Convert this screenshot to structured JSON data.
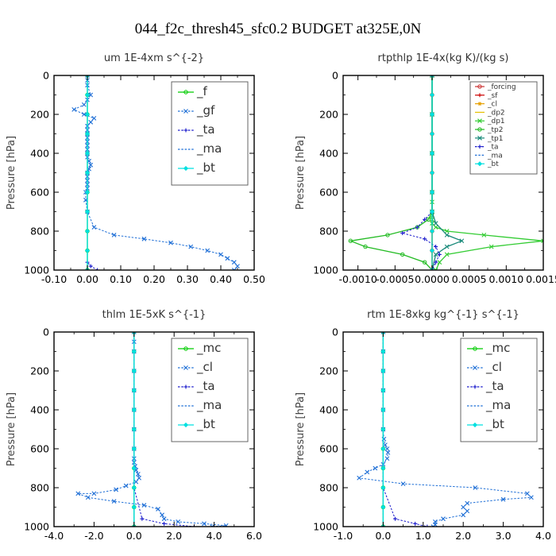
{
  "suptitle": "044_f2c_thresh45_sfc0.2  BUDGET at325E,0N",
  "chart_data": [
    {
      "type": "line",
      "title": "um   1E-4xm s^{-2}",
      "ylabel": "Pressure [hPa]",
      "xlim": [
        -0.1,
        0.5
      ],
      "ylim": [
        1000,
        0
      ],
      "xticks": [
        "-0.10",
        "0.00",
        "0.10",
        "0.20",
        "0.30",
        "0.40",
        "0.50"
      ],
      "xtick_values": [
        -0.1,
        0.0,
        0.1,
        0.2,
        0.3,
        0.4,
        0.5
      ],
      "yticks": [
        "0",
        "200",
        "400",
        "600",
        "800",
        "1000"
      ],
      "ytick_values": [
        0,
        200,
        400,
        600,
        800,
        1000
      ],
      "legend_position": "top-right",
      "legend_size": "large",
      "series": [
        {
          "name": "_f",
          "color": "#00cc00",
          "marker": "circle",
          "dashed": false,
          "x": [
            0,
            0,
            0,
            0,
            0,
            0,
            0,
            0,
            0,
            0,
            0
          ],
          "y": [
            0,
            100,
            200,
            300,
            400,
            500,
            600,
            700,
            800,
            900,
            1000
          ]
        },
        {
          "name": "_gf",
          "color": "#1f6fd6",
          "marker": "cross",
          "dashed": true,
          "x": [
            0.0,
            0.0,
            0.0,
            0.01,
            0.0,
            -0.01,
            -0.04,
            -0.01,
            0.02,
            0.01,
            0.0,
            0.0,
            0.0,
            0.0,
            0.0,
            0.0,
            0.0,
            0.0,
            0.0,
            0.005,
            0.01,
            0.005,
            0.0,
            0.0,
            0.0,
            0.0,
            0.0,
            -0.005,
            -0.005,
            0.0,
            0.02,
            0.08,
            0.17,
            0.25,
            0.31,
            0.36,
            0.4,
            0.42,
            0.44,
            0.45,
            0.44
          ],
          "y": [
            0,
            25,
            50,
            100,
            125,
            150,
            175,
            200,
            220,
            240,
            260,
            280,
            300,
            320,
            340,
            360,
            380,
            400,
            420,
            440,
            460,
            480,
            500,
            520,
            540,
            560,
            580,
            600,
            640,
            700,
            780,
            820,
            840,
            860,
            880,
            900,
            920,
            940,
            960,
            980,
            1000
          ]
        },
        {
          "name": "_ta",
          "color": "#1a1acc",
          "marker": "plus",
          "dashed": true,
          "x": [
            0,
            0,
            0,
            0,
            0,
            0,
            0,
            0,
            0,
            0,
            0,
            0.01,
            0.03
          ],
          "y": [
            0,
            100,
            200,
            300,
            400,
            500,
            600,
            700,
            800,
            900,
            960,
            980,
            1000
          ]
        },
        {
          "name": "_ma",
          "color": "#1f6fd6",
          "marker": "none",
          "dashed": true,
          "x": [
            0,
            0,
            0,
            0,
            0,
            0,
            0,
            0,
            0,
            0,
            0
          ],
          "y": [
            0,
            100,
            200,
            300,
            400,
            500,
            600,
            700,
            800,
            900,
            1000
          ]
        },
        {
          "name": "_bt",
          "color": "#00e0e0",
          "marker": "diamond",
          "dashed": false,
          "x": [
            0,
            0,
            0,
            0,
            0,
            0,
            0,
            0,
            0,
            0,
            0
          ],
          "y": [
            0,
            100,
            200,
            300,
            400,
            500,
            600,
            700,
            800,
            900,
            1000
          ]
        }
      ]
    },
    {
      "type": "line",
      "title": "rtpthlp   1E-4x(kg K)/(kg s)",
      "ylabel": "Pressure [hPa]",
      "xlim": [
        -0.0012,
        0.0015
      ],
      "ylim": [
        1000,
        0
      ],
      "xticks": [
        "-0.0010",
        "-0.0005",
        "0.0000",
        "0.0005",
        "0.0010",
        "0.0015"
      ],
      "xtick_values": [
        -0.001,
        -0.0005,
        0.0,
        0.0005,
        0.001,
        0.0015
      ],
      "yticks": [
        "0",
        "200",
        "400",
        "600",
        "800",
        "1000"
      ],
      "ytick_values": [
        0,
        200,
        400,
        600,
        800,
        1000
      ],
      "legend_position": "top-right",
      "legend_size": "small",
      "series": [
        {
          "name": "_forcing",
          "color": "#cc3333",
          "marker": "circle",
          "dashed": false,
          "x": [
            0,
            0,
            0,
            0,
            0,
            0,
            0,
            0,
            0,
            0,
            0
          ],
          "y": [
            0,
            100,
            200,
            300,
            400,
            500,
            600,
            700,
            800,
            900,
            1000
          ]
        },
        {
          "name": "_sf",
          "color": "#cc0000",
          "marker": "plus",
          "dashed": false,
          "x": [
            0,
            0,
            0,
            0,
            0,
            0,
            0,
            0,
            0,
            0,
            0
          ],
          "y": [
            0,
            100,
            200,
            300,
            400,
            500,
            600,
            700,
            800,
            900,
            1000
          ]
        },
        {
          "name": "_cl",
          "color": "#e6a000",
          "marker": "star",
          "dashed": false,
          "x": [
            0,
            0,
            0,
            0,
            0,
            0,
            0,
            0,
            0,
            0,
            0
          ],
          "y": [
            0,
            100,
            200,
            300,
            400,
            500,
            600,
            700,
            800,
            900,
            1000
          ]
        },
        {
          "name": "_dp2",
          "color": "#e6c000",
          "marker": "none",
          "dashed": false,
          "x": [
            0,
            0,
            0,
            0,
            0,
            0,
            0,
            0,
            0,
            0,
            0
          ],
          "y": [
            0,
            100,
            200,
            300,
            400,
            500,
            600,
            700,
            800,
            900,
            1000
          ]
        },
        {
          "name": "_dp1",
          "color": "#33cc33",
          "marker": "cross",
          "dashed": false,
          "x": [
            0,
            0,
            0,
            0,
            0,
            0,
            0,
            0,
            0,
            5e-05,
            0.0002,
            0.0007,
            0.0015,
            0.0008,
            0.0002,
            0.0001,
            5e-05
          ],
          "y": [
            0,
            200,
            400,
            600,
            650,
            700,
            720,
            740,
            760,
            780,
            800,
            820,
            850,
            880,
            920,
            960,
            1000
          ]
        },
        {
          "name": "_tp2",
          "color": "#22bb22",
          "marker": "circle",
          "dashed": false,
          "x": [
            0,
            0,
            0,
            0,
            0,
            -5e-05,
            -0.0002,
            -0.0006,
            -0.0011,
            -0.0009,
            -0.0004,
            -0.0001,
            0
          ],
          "y": [
            0,
            200,
            400,
            600,
            700,
            740,
            780,
            820,
            850,
            880,
            920,
            960,
            1000
          ]
        },
        {
          "name": "_tp1",
          "color": "#1a8a7a",
          "marker": "cross",
          "dashed": false,
          "x": [
            0,
            0,
            0,
            0,
            0,
            5e-05,
            0.0002,
            0.0004,
            0.0002,
            5e-05,
            0
          ],
          "y": [
            0,
            200,
            400,
            600,
            700,
            760,
            820,
            850,
            880,
            920,
            1000
          ]
        },
        {
          "name": "_ta",
          "color": "#1a1acc",
          "marker": "plus",
          "dashed": true,
          "x": [
            0,
            0,
            0,
            0,
            0,
            -0.0001,
            -0.0002,
            -0.0004,
            -0.0001,
            5e-05,
            0.0001,
            5e-05,
            0
          ],
          "y": [
            0,
            200,
            400,
            600,
            700,
            740,
            780,
            810,
            840,
            880,
            920,
            960,
            1000
          ]
        },
        {
          "name": "_ma",
          "color": "#1f6fd6",
          "marker": "none",
          "dashed": true,
          "x": [
            0,
            0,
            0,
            0,
            0,
            0,
            0,
            0,
            0,
            0,
            0
          ],
          "y": [
            0,
            100,
            200,
            300,
            400,
            500,
            600,
            700,
            800,
            900,
            1000
          ]
        },
        {
          "name": "_bt",
          "color": "#00e0e0",
          "marker": "diamond",
          "dashed": false,
          "x": [
            0,
            0,
            0,
            0,
            0,
            0,
            0,
            0,
            0,
            0,
            0
          ],
          "y": [
            0,
            100,
            200,
            300,
            400,
            500,
            600,
            700,
            800,
            900,
            1000
          ]
        }
      ]
    },
    {
      "type": "line",
      "title": "thlm   1E-5xK s^{-1}",
      "ylabel": "Pressure [hPa]",
      "xlim": [
        -4.0,
        6.0
      ],
      "ylim": [
        1000,
        0
      ],
      "xticks": [
        "-4.0",
        "-2.0",
        "0.0",
        "2.0",
        "4.0",
        "6.0"
      ],
      "xtick_values": [
        -4.0,
        -2.0,
        0.0,
        2.0,
        4.0,
        6.0
      ],
      "yticks": [
        "0",
        "200",
        "400",
        "600",
        "800",
        "1000"
      ],
      "ytick_values": [
        0,
        200,
        400,
        600,
        800,
        1000
      ],
      "legend_position": "top-right",
      "legend_size": "large",
      "series": [
        {
          "name": "_mc",
          "color": "#00cc00",
          "marker": "circle",
          "dashed": false,
          "x": [
            0,
            0,
            0,
            0,
            0,
            0,
            0,
            0,
            0,
            0,
            0
          ],
          "y": [
            0,
            100,
            200,
            300,
            400,
            500,
            600,
            700,
            800,
            900,
            1000
          ]
        },
        {
          "name": "_cl",
          "color": "#1f6fd6",
          "marker": "cross",
          "dashed": true,
          "x": [
            0,
            0,
            0,
            0,
            0,
            0,
            0,
            0,
            0,
            0,
            0.05,
            0.1,
            0.2,
            0.25,
            0.1,
            -0.4,
            -0.9,
            -2.0,
            -2.8,
            -2.3,
            -1.0,
            0.5,
            1.2,
            1.4,
            1.5,
            2.2,
            3.5,
            4.6,
            3.9
          ],
          "y": [
            0,
            50,
            100,
            200,
            300,
            400,
            500,
            600,
            650,
            670,
            690,
            710,
            730,
            750,
            770,
            790,
            810,
            830,
            830,
            850,
            870,
            890,
            910,
            940,
            960,
            975,
            985,
            995,
            1000
          ]
        },
        {
          "name": "_ta",
          "color": "#1a1acc",
          "marker": "plus",
          "dashed": true,
          "x": [
            0,
            0,
            0,
            0,
            0,
            0,
            0,
            0,
            0,
            0.4,
            1.5,
            3.0
          ],
          "y": [
            0,
            100,
            200,
            300,
            400,
            500,
            600,
            700,
            800,
            960,
            985,
            1000
          ]
        },
        {
          "name": "_ma",
          "color": "#1f6fd6",
          "marker": "none",
          "dashed": true,
          "x": [
            0,
            0,
            0,
            0,
            0,
            0,
            0,
            0,
            0,
            0,
            0
          ],
          "y": [
            0,
            100,
            200,
            300,
            400,
            500,
            600,
            700,
            800,
            900,
            1000
          ]
        },
        {
          "name": "_bt",
          "color": "#00e0e0",
          "marker": "diamond",
          "dashed": false,
          "x": [
            0,
            0,
            0,
            0,
            0,
            0,
            0,
            0,
            0,
            0,
            0
          ],
          "y": [
            0,
            100,
            200,
            300,
            400,
            500,
            600,
            700,
            800,
            900,
            1000
          ]
        }
      ]
    },
    {
      "type": "line",
      "title": "rtm   1E-8xkg kg^{-1} s^{-1}",
      "ylabel": "Pressure [hPa]",
      "xlim": [
        -1.0,
        4.0
      ],
      "ylim": [
        1000,
        0
      ],
      "xticks": [
        "-1.0",
        "0.0",
        "1.0",
        "2.0",
        "3.0",
        "4.0"
      ],
      "xtick_values": [
        -1.0,
        0.0,
        1.0,
        2.0,
        3.0,
        4.0
      ],
      "yticks": [
        "0",
        "200",
        "400",
        "600",
        "800",
        "1000"
      ],
      "ytick_values": [
        0,
        200,
        400,
        600,
        800,
        1000
      ],
      "legend_position": "top-right",
      "legend_size": "large",
      "series": [
        {
          "name": "_mc",
          "color": "#00cc00",
          "marker": "circle",
          "dashed": false,
          "x": [
            0,
            0,
            0,
            0,
            0,
            0,
            0,
            0,
            0,
            0,
            0
          ],
          "y": [
            0,
            100,
            200,
            300,
            400,
            500,
            600,
            700,
            800,
            900,
            1000
          ]
        },
        {
          "name": "_cl",
          "color": "#1f6fd6",
          "marker": "cross",
          "dashed": true,
          "x": [
            0,
            0,
            0,
            0,
            0,
            0,
            0.02,
            0.05,
            0.1,
            0.12,
            0.1,
            0.0,
            -0.2,
            -0.4,
            -0.6,
            0.5,
            2.3,
            3.6,
            3.7,
            3.0,
            2.1,
            2.0,
            2.1,
            2.0,
            1.5,
            1.3,
            1.3,
            1.25
          ],
          "y": [
            0,
            100,
            200,
            300,
            400,
            500,
            550,
            580,
            600,
            620,
            650,
            680,
            700,
            720,
            750,
            780,
            800,
            830,
            850,
            860,
            880,
            900,
            920,
            940,
            960,
            975,
            990,
            1000
          ]
        },
        {
          "name": "_ta",
          "color": "#1a1acc",
          "marker": "plus",
          "dashed": true,
          "x": [
            0,
            0,
            0,
            0,
            0,
            0,
            0,
            0,
            0,
            0.3,
            0.8,
            1.1
          ],
          "y": [
            0,
            100,
            200,
            300,
            400,
            500,
            600,
            700,
            800,
            960,
            985,
            1000
          ]
        },
        {
          "name": "_ma",
          "color": "#1f6fd6",
          "marker": "none",
          "dashed": true,
          "x": [
            0,
            0,
            0,
            0,
            0,
            0,
            0,
            0,
            0,
            0,
            0
          ],
          "y": [
            0,
            100,
            200,
            300,
            400,
            500,
            600,
            700,
            800,
            900,
            1000
          ]
        },
        {
          "name": "_bt",
          "color": "#00e0e0",
          "marker": "diamond",
          "dashed": false,
          "x": [
            0,
            0,
            0,
            0,
            0,
            0,
            0,
            0,
            0,
            0,
            0
          ],
          "y": [
            0,
            100,
            200,
            300,
            400,
            500,
            600,
            700,
            800,
            900,
            1000
          ]
        }
      ]
    }
  ]
}
